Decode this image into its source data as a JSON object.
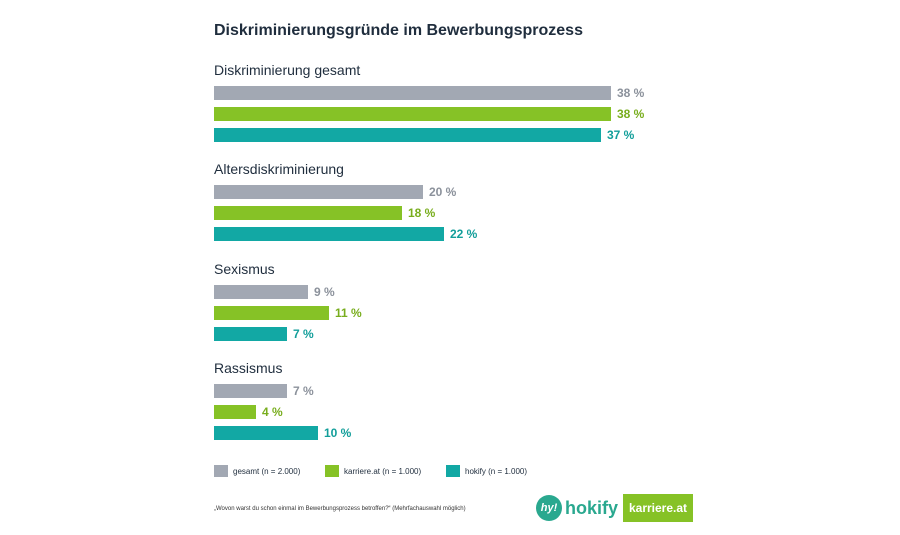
{
  "chart_data": {
    "type": "bar",
    "orientation": "horizontal",
    "title": "Diskriminierungsgründe im Bewerbungsprozess",
    "categories": [
      "Diskriminierung gesamt",
      "Altersdiskriminierung",
      "Sexismus",
      "Rassismus"
    ],
    "series": [
      {
        "name": "gesamt (n = 2.000)",
        "color": "#a2a8b3",
        "values": [
          38,
          20,
          9,
          7
        ],
        "labels": [
          "38 %",
          "20 %",
          "9 %",
          "7 %"
        ]
      },
      {
        "name": "karriere.at (n = 1.000)",
        "color": "#86c226",
        "values": [
          38,
          18,
          11,
          4
        ],
        "labels": [
          "38 %",
          "18 %",
          "11 %",
          "4 %"
        ]
      },
      {
        "name": "hokify (n = 1.000)",
        "color": "#12a8a4",
        "values": [
          37,
          22,
          7,
          10
        ],
        "labels": [
          "37 %",
          "22 %",
          "7 %",
          "10 %"
        ]
      }
    ],
    "label_colors": [
      "#8b919b",
      "#78ad1d",
      "#129e9a"
    ],
    "xlim": [
      0,
      38
    ],
    "grid": false,
    "legend": "bottom"
  },
  "footnote": "„Wovon warst du schon einmal im Bewerbungsprozess betroffen?“ (Mehrfachauswahl möglich)",
  "logos": {
    "hokify_mark": "hy!",
    "hokify_text": "hokify",
    "karriere_text": "karriere.at"
  }
}
